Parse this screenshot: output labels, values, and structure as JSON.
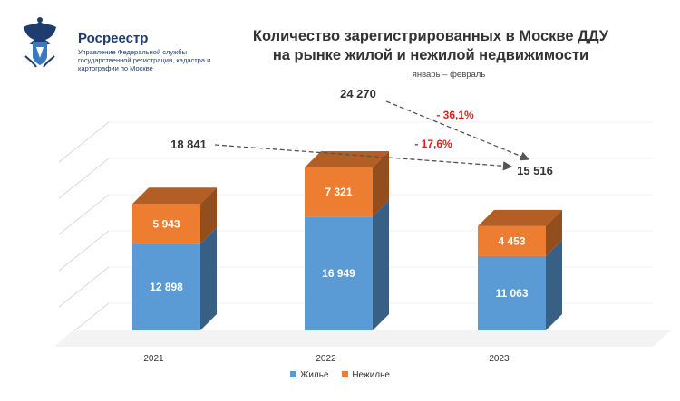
{
  "header": {
    "org_name": "Росреестр",
    "org_desc": "Управление Федеральной службы государственной регистрации, кадастра и картографии по Москве",
    "title_line1": "Количество зарегистрированных в Москве ДДУ",
    "title_line2": "на рынке жилой и нежилой недвижимости",
    "subtitle": "январь – февраль"
  },
  "colors": {
    "residential": "#5b9bd5",
    "non_residential": "#ed7d31",
    "change": "#e02020",
    "brand": "#1f3c6e"
  },
  "chart_data": {
    "type": "bar",
    "stacked": true,
    "three_d": true,
    "categories": [
      "2021",
      "2022",
      "2023"
    ],
    "series": [
      {
        "name": "Жилье",
        "values": [
          12898,
          16949,
          11063
        ],
        "labels": [
          "12 898",
          "16 949",
          "11 063"
        ]
      },
      {
        "name": "Нежилье",
        "values": [
          5943,
          7321,
          4453
        ],
        "labels": [
          "5 943",
          "7 321",
          "4 453"
        ]
      }
    ],
    "totals": [
      18841,
      24270,
      15516
    ],
    "total_labels": [
      "18 841",
      "24 270",
      "15 516"
    ],
    "annotations": [
      {
        "text": "- 36,1%",
        "from": "2022",
        "to": "2023"
      },
      {
        "text": "- 17,6%",
        "from": "2021",
        "to": "2023"
      }
    ],
    "ylim": [
      0,
      30000
    ],
    "legend_position": "bottom"
  }
}
